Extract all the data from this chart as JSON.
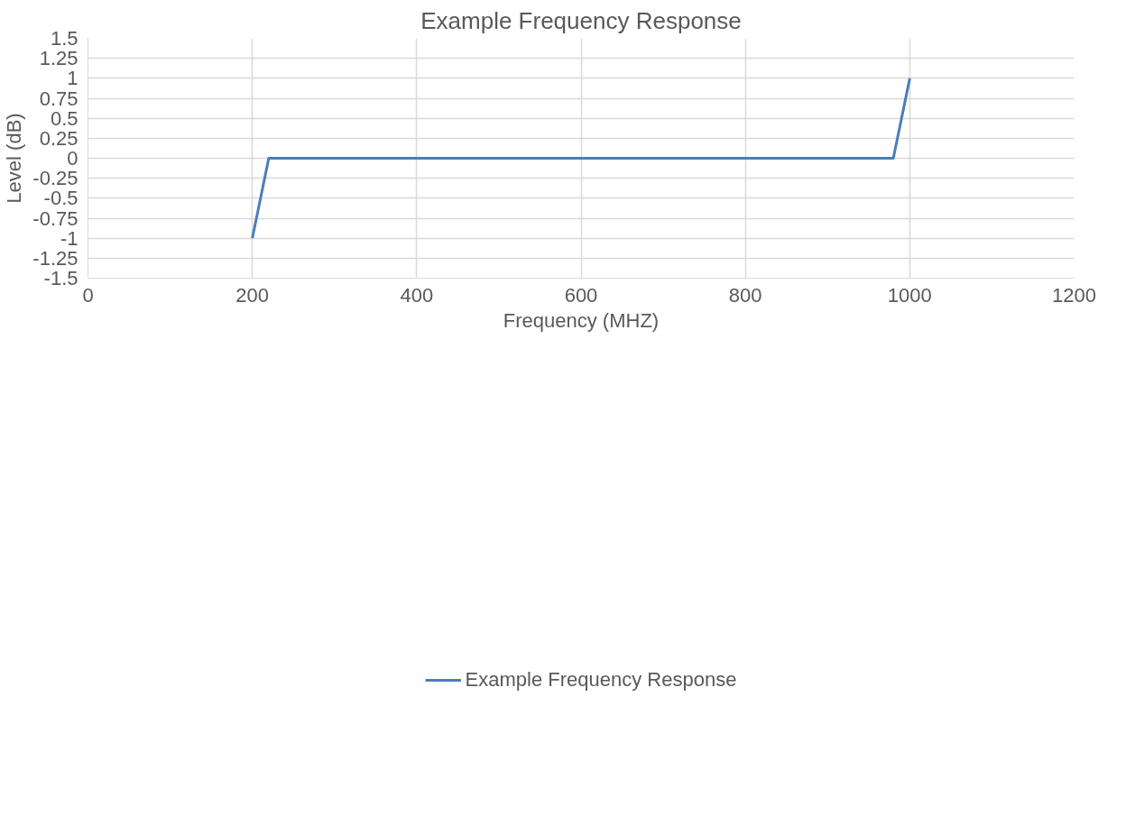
{
  "chart_data": {
    "type": "line",
    "title": "Example Frequency Response",
    "xlabel": "Frequency (MHZ)",
    "ylabel": "Level (dB)",
    "x": [
      200,
      220,
      980,
      1000
    ],
    "series": [
      {
        "name": "Example Frequency Response",
        "color": "#4a7ebb",
        "values": [
          -1,
          0,
          0,
          1
        ]
      }
    ],
    "xlim": [
      0,
      1200
    ],
    "xticks": [
      0,
      200,
      400,
      600,
      800,
      1000,
      1200
    ],
    "ylim": [
      -1.5,
      1.5
    ],
    "yticks": [
      -1.5,
      -1.25,
      -1,
      -0.75,
      -0.5,
      -0.25,
      0,
      0.25,
      0.5,
      0.75,
      1,
      1.25,
      1.5
    ],
    "grid": true,
    "legend": "bottom",
    "marker": "none",
    "line_style": "solid"
  }
}
